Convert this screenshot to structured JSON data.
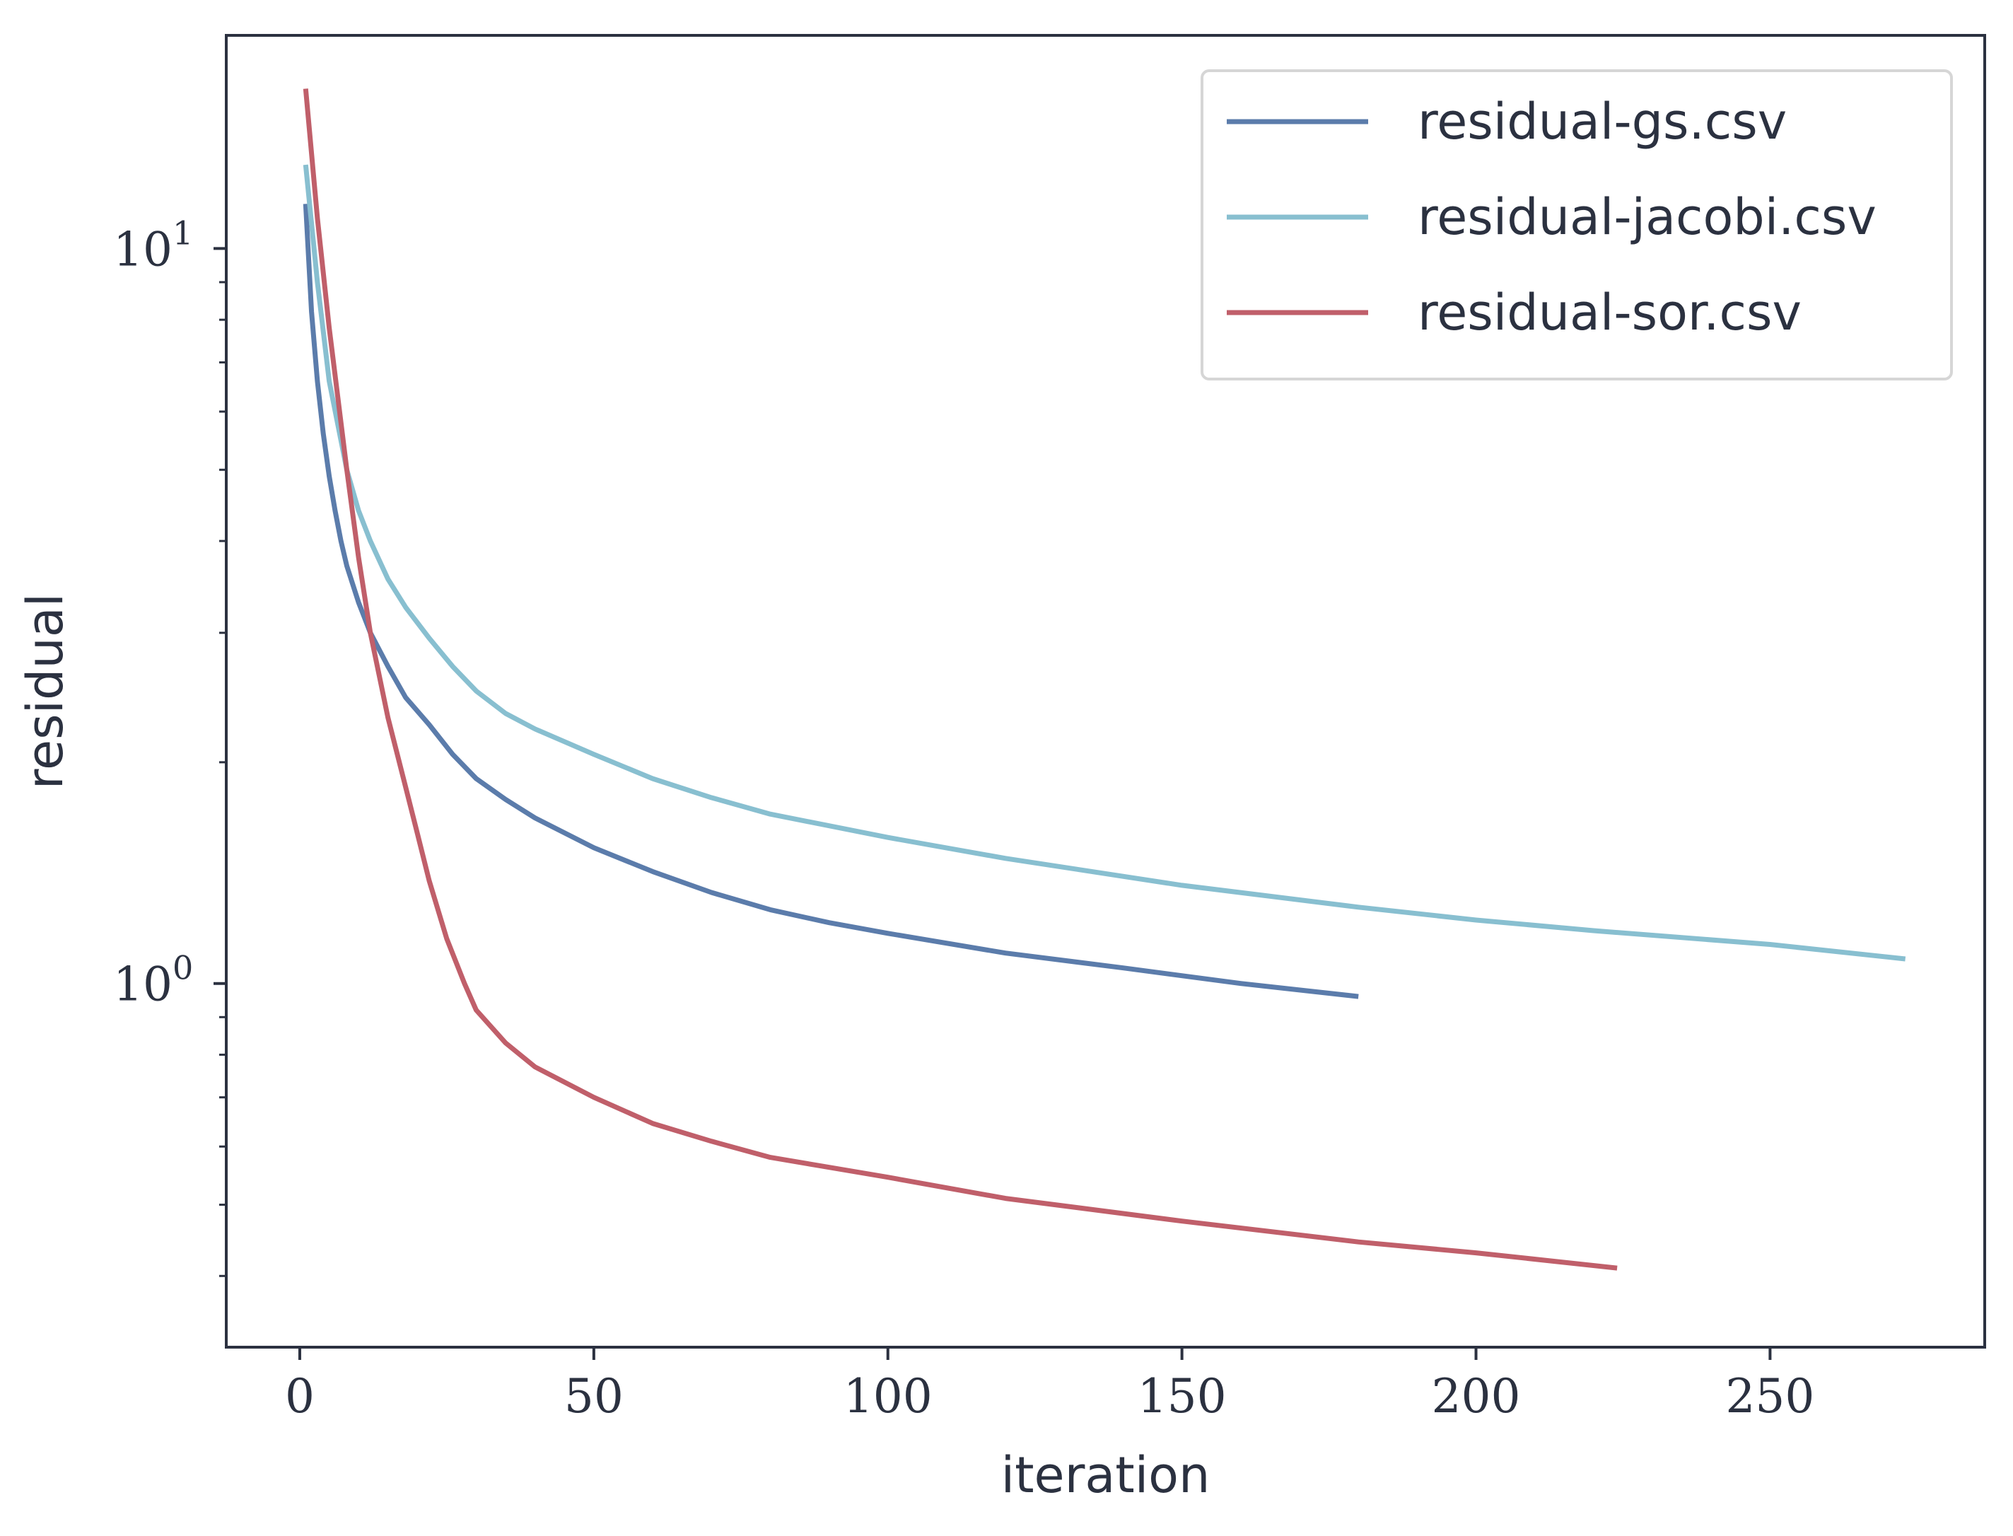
{
  "chart_data": {
    "type": "line",
    "title": "",
    "xlabel": "iteration",
    "ylabel": "residual",
    "xscale": "linear",
    "yscale": "log",
    "xlim": [
      -12.5,
      286.5
    ],
    "ylim": [
      0.32,
      19.5
    ],
    "xticks": [
      0,
      50,
      100,
      150,
      200,
      250
    ],
    "xtick_labels": [
      "0",
      "50",
      "100",
      "150",
      "200",
      "250"
    ],
    "yticks_major": [
      1,
      10
    ],
    "ytick_labels": [
      {
        "base": "10",
        "exp": "0"
      },
      {
        "base": "10",
        "exp": "1"
      }
    ],
    "yticks_minor": [
      0.4,
      0.5,
      0.6,
      0.7,
      0.8,
      0.9,
      2,
      3,
      4,
      5,
      6,
      7,
      8,
      9
    ],
    "grid": false,
    "legend_position": "top-right",
    "series": [
      {
        "name": "residual-gs.csv",
        "color": "#5b7cab",
        "x": [
          1,
          2,
          3,
          4,
          5,
          6,
          7,
          8,
          10,
          12,
          15,
          18,
          22,
          26,
          30,
          35,
          40,
          50,
          60,
          70,
          80,
          90,
          100,
          120,
          140,
          160,
          180
        ],
        "y": [
          11.5,
          8.2,
          6.6,
          5.6,
          4.9,
          4.4,
          4.0,
          3.7,
          3.3,
          3.0,
          2.7,
          2.45,
          2.25,
          2.05,
          1.9,
          1.78,
          1.68,
          1.53,
          1.42,
          1.33,
          1.26,
          1.21,
          1.17,
          1.1,
          1.05,
          1.0,
          0.96
        ]
      },
      {
        "name": "residual-jacobi.csv",
        "color": "#88bfd0",
        "x": [
          1,
          3,
          5,
          8,
          10,
          12,
          15,
          18,
          22,
          26,
          30,
          35,
          40,
          50,
          60,
          70,
          80,
          100,
          120,
          150,
          180,
          200,
          220,
          250,
          273
        ],
        "y": [
          13.0,
          9.0,
          6.6,
          5.0,
          4.4,
          4.0,
          3.55,
          3.25,
          2.95,
          2.7,
          2.5,
          2.33,
          2.22,
          2.05,
          1.9,
          1.79,
          1.7,
          1.58,
          1.48,
          1.36,
          1.27,
          1.22,
          1.18,
          1.13,
          1.08
        ]
      },
      {
        "name": "residual-sor.csv",
        "color": "#c05f6a",
        "x": [
          1,
          3,
          5,
          8,
          10,
          12,
          15,
          18,
          20,
          22,
          25,
          28,
          30,
          35,
          40,
          50,
          60,
          70,
          80,
          100,
          120,
          150,
          180,
          200,
          224
        ],
        "y": [
          16.5,
          11.0,
          7.8,
          5.0,
          3.8,
          3.0,
          2.3,
          1.85,
          1.6,
          1.38,
          1.15,
          1.0,
          0.92,
          0.83,
          0.77,
          0.7,
          0.645,
          0.61,
          0.58,
          0.545,
          0.51,
          0.475,
          0.445,
          0.43,
          0.41
        ]
      }
    ]
  }
}
